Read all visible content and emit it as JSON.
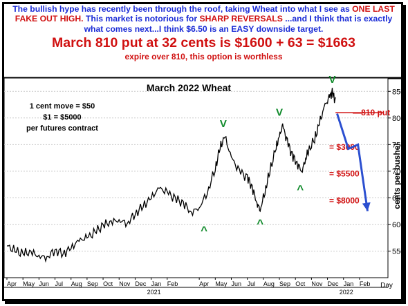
{
  "header": {
    "line1_a": "The bullish hype has recently been through the roof, taking Wheat into what I see as",
    "line2_red": "ONE LAST FAKE OUT HIGH.",
    "line2_b": " This market is notorious for ",
    "line2_red2": "SHARP REVERSALS",
    "line2_c": " ...and I think that is exactly what comes next...I think $6.50 is an EASY downside target.",
    "big_line": "March 810 put at 32 cents is $1600 + 63 = $1663",
    "small_line": "expire over 810, this option is worthless"
  },
  "chart_data": {
    "type": "line",
    "title": "March 2022 Wheat",
    "ylabel": "cents per bushel",
    "xlabel": "Day",
    "ylim": [
      500,
      875
    ],
    "yticks": [
      550,
      600,
      650,
      700,
      750,
      800,
      850
    ],
    "xlim": [
      0,
      23.6
    ],
    "month_ticks": [
      {
        "label": "Apr",
        "x": 0
      },
      {
        "label": "May",
        "x": 1
      },
      {
        "label": "Jun",
        "x": 2
      },
      {
        "label": "Jul",
        "x": 3
      },
      {
        "label": "Aug",
        "x": 4
      },
      {
        "label": "Sep",
        "x": 5
      },
      {
        "label": "Oct",
        "x": 6
      },
      {
        "label": "Nov",
        "x": 7
      },
      {
        "label": "Dec",
        "x": 8
      },
      {
        "label": "Jan",
        "x": 9
      },
      {
        "label": "Feb",
        "x": 10
      },
      {
        "label": "Apr",
        "x": 12
      },
      {
        "label": "May",
        "x": 13
      },
      {
        "label": "Jun",
        "x": 14
      },
      {
        "label": "Jul",
        "x": 15
      },
      {
        "label": "Aug",
        "x": 16
      },
      {
        "label": "Sep",
        "x": 17
      },
      {
        "label": "Oct",
        "x": 18
      },
      {
        "label": "Nov",
        "x": 19
      },
      {
        "label": "Dec",
        "x": 20
      },
      {
        "label": "Jan",
        "x": 21
      },
      {
        "label": "Feb",
        "x": 22
      }
    ],
    "year_labels": [
      {
        "label": "2021",
        "x": 9
      },
      {
        "label": "2022",
        "x": 21
      }
    ],
    "series": [
      {
        "color": "#000000",
        "points": [
          [
            0,
            560
          ],
          [
            0.5,
            550
          ],
          [
            1,
            545
          ],
          [
            1.5,
            548
          ],
          [
            2,
            540
          ],
          [
            2.5,
            538
          ],
          [
            3,
            552
          ],
          [
            3.5,
            545
          ],
          [
            4,
            556
          ],
          [
            4.5,
            570
          ],
          [
            5,
            575
          ],
          [
            5.5,
            585
          ],
          [
            6,
            598
          ],
          [
            6.5,
            605
          ],
          [
            7,
            608
          ],
          [
            7.5,
            602
          ],
          [
            8,
            620
          ],
          [
            8.5,
            635
          ],
          [
            9,
            650
          ],
          [
            9.5,
            668
          ],
          [
            10,
            660
          ],
          [
            10.5,
            648
          ],
          [
            11,
            640
          ],
          [
            11.5,
            622
          ],
          [
            12,
            632
          ],
          [
            12.5,
            660
          ],
          [
            13,
            705
          ],
          [
            13.3,
            745
          ],
          [
            13.6,
            765
          ],
          [
            14,
            725
          ],
          [
            14.5,
            700
          ],
          [
            15,
            688
          ],
          [
            15.3,
            670
          ],
          [
            15.6,
            640
          ],
          [
            15.8,
            628
          ],
          [
            16.1,
            662
          ],
          [
            16.4,
            700
          ],
          [
            16.8,
            745
          ],
          [
            17,
            765
          ],
          [
            17.2,
            785
          ],
          [
            17.5,
            755
          ],
          [
            17.8,
            730
          ],
          [
            18.1,
            715
          ],
          [
            18.4,
            700
          ],
          [
            18.6,
            720
          ],
          [
            18.8,
            738
          ],
          [
            19.2,
            760
          ],
          [
            19.5,
            790
          ],
          [
            19.8,
            820
          ],
          [
            20.1,
            838
          ],
          [
            20.3,
            848
          ],
          [
            20.5,
            832
          ]
        ]
      }
    ],
    "annotations": [
      {
        "text": "1 cent move = $50"
      },
      {
        "text": "$1 = $5000"
      },
      {
        "text": "per futures contract"
      },
      {
        "text": "810 put",
        "y": 810
      },
      {
        "text": "= $3000",
        "y": 745
      },
      {
        "text": "= $5500",
        "y": 695
      },
      {
        "text": "= $8000",
        "y": 645
      }
    ],
    "markers": [
      {
        "glyph": "V",
        "x": 13.5,
        "y": 783
      },
      {
        "glyph": "V",
        "x": 17.0,
        "y": 804
      },
      {
        "glyph": "V",
        "x": 20.3,
        "y": 866
      },
      {
        "glyph": "^",
        "x": 12.3,
        "y": 600
      },
      {
        "glyph": "^",
        "x": 15.8,
        "y": 613
      },
      {
        "glyph": "^",
        "x": 18.3,
        "y": 677
      }
    ],
    "projection": {
      "color": "#2b4fd0",
      "points": [
        [
          20.6,
          808
        ],
        [
          21.3,
          742
        ],
        [
          21.9,
          750
        ],
        [
          22.5,
          625
        ]
      ]
    },
    "put_line": {
      "y": 810,
      "x_from": 20.5,
      "x_to": 23.5,
      "color": "#d01010"
    },
    "colors": {
      "marker": "#0f8a2a",
      "annotation": "#d01010",
      "line": "#000000"
    }
  }
}
